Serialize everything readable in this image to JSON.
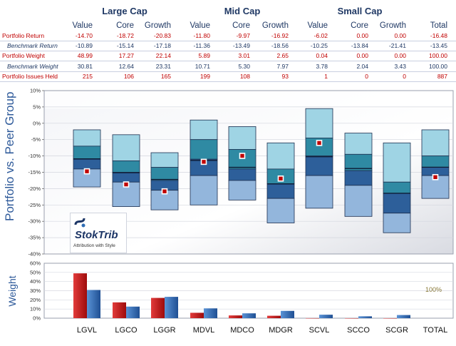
{
  "table": {
    "groups": [
      "Large Cap",
      "Mid Cap",
      "Small Cap"
    ],
    "columns": [
      "Value",
      "Core",
      "Growth",
      "Value",
      "Core",
      "Growth",
      "Value",
      "Core",
      "Growth",
      "Total"
    ],
    "rows": [
      {
        "label": "Portfolio Return",
        "style": "red",
        "values": [
          "-14.70",
          "-18.72",
          "-20.83",
          "-11.80",
          "-9.97",
          "-16.92",
          "-6.02",
          "0.00",
          "0.00",
          "-16.48"
        ]
      },
      {
        "label": "Benchmark Return",
        "style": "blue",
        "values": [
          "-10.89",
          "-15.14",
          "-17.18",
          "-11.36",
          "-13.49",
          "-18.56",
          "-10.25",
          "-13.84",
          "-21.41",
          "-13.45"
        ]
      },
      {
        "label": "Portfolio Weight",
        "style": "red",
        "values": [
          "48.99",
          "17.27",
          "22.14",
          "5.89",
          "3.01",
          "2.65",
          "0.04",
          "0.00",
          "0.00",
          "100.00"
        ]
      },
      {
        "label": "Benchmark Weight",
        "style": "blue",
        "values": [
          "30.81",
          "12.64",
          "23.31",
          "10.71",
          "5.30",
          "7.97",
          "3.78",
          "2.04",
          "3.43",
          "100.00"
        ]
      },
      {
        "label": "Portfolio Issues Held",
        "style": "red",
        "values": [
          "215",
          "106",
          "165",
          "199",
          "108",
          "93",
          "1",
          "0",
          "0",
          "887"
        ]
      }
    ]
  },
  "y_label_top": "Portfolio vs. Peer Group",
  "y_label_bottom": "Weight",
  "logo": {
    "name": "StokTrib",
    "tagline": "Attribution with Style"
  },
  "weight_note": "100%",
  "colors": {
    "band1": "#9fd4e4",
    "band2": "#2f8aa3",
    "band3": "#2d5f9a",
    "band4": "#93b6dc",
    "portfolio": "#c00000",
    "benchmark": "#2e6db5",
    "title": "#1f3864"
  },
  "chart_data": [
    {
      "type": "box",
      "ylim": [
        -40,
        10
      ],
      "ytick_labels": [
        "10%",
        "5%",
        "0%",
        "-5%",
        "-10%",
        "-15%",
        "-20%",
        "-25%",
        "-30%",
        "-35%",
        "-40%"
      ],
      "categories": [
        "LGVL",
        "LGCO",
        "LGGR",
        "MDVL",
        "MDCO",
        "MDGR",
        "SCVL",
        "SCCO",
        "SCGR",
        "TOTAL"
      ],
      "peer_percentiles": [
        [
          -2,
          -7,
          -11,
          -14,
          -19.5
        ],
        [
          -3.5,
          -11.5,
          -15,
          -18,
          -25.5
        ],
        [
          -9,
          -13.5,
          -17.5,
          -20.5,
          -26.5
        ],
        [
          1,
          -5,
          -11,
          -16,
          -25
        ],
        [
          -1,
          -8,
          -14,
          -17.5,
          -23.5
        ],
        [
          -6,
          -14,
          -18.5,
          -23,
          -30.5
        ],
        [
          4.5,
          -4.5,
          -10,
          -16,
          -26
        ],
        [
          -3,
          -9.5,
          -14.5,
          -19,
          -28.5
        ],
        [
          -6,
          -18,
          -21.5,
          -27.5,
          -33.5
        ],
        [
          -2,
          -10,
          -13.5,
          -16,
          -23
        ]
      ],
      "portfolio_return": [
        -14.7,
        -18.72,
        -20.83,
        -11.8,
        -9.97,
        -16.92,
        -6.02,
        null,
        null,
        -16.48
      ],
      "benchmark_return": [
        -10.89,
        -15.14,
        -17.18,
        -11.36,
        -13.49,
        -18.56,
        -10.25,
        -13.84,
        -21.41,
        -13.45
      ]
    },
    {
      "type": "bar",
      "ylim": [
        0,
        60
      ],
      "ytick_labels": [
        "60%",
        "50%",
        "40%",
        "30%",
        "20%",
        "10%",
        "0%"
      ],
      "categories": [
        "LGVL",
        "LGCO",
        "LGGR",
        "MDVL",
        "MDCO",
        "MDGR",
        "SCVL",
        "SCCO",
        "SCGR",
        "TOTAL"
      ],
      "series": [
        {
          "name": "Portfolio Weight",
          "values": [
            48.99,
            17.27,
            22.14,
            5.89,
            3.01,
            2.65,
            0.04,
            0,
            0,
            null
          ]
        },
        {
          "name": "Benchmark Weight",
          "values": [
            30.81,
            12.64,
            23.31,
            10.71,
            5.3,
            7.97,
            3.78,
            2.04,
            3.43,
            null
          ]
        }
      ]
    }
  ]
}
